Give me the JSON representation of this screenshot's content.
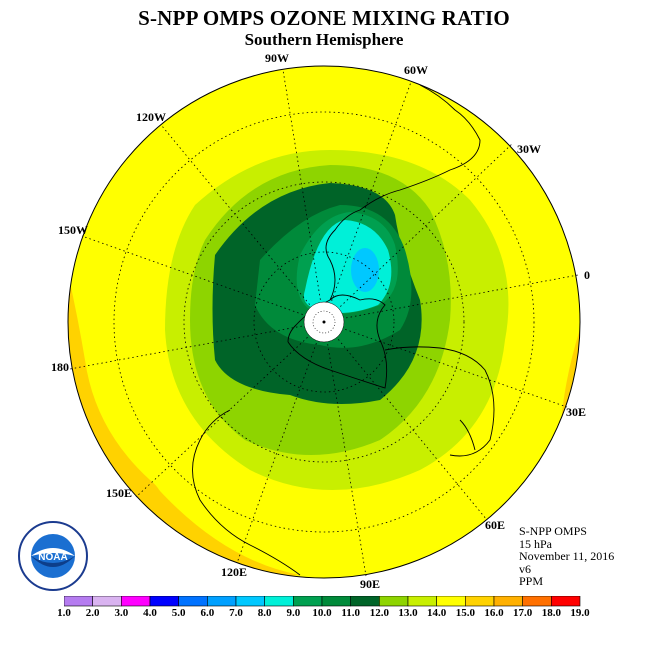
{
  "title": "S-NPP OMPS OZONE MIXING RATIO",
  "subtitle": "Southern Hemisphere",
  "longitude_labels": [
    "90W",
    "60W",
    "30W",
    "0",
    "30E",
    "60E",
    "90E",
    "120E",
    "150E",
    "180",
    "150W",
    "120W"
  ],
  "info": {
    "instrument": "S-NPP OMPS",
    "level": "15 hPa",
    "date": "November 11, 2016",
    "version": "v6",
    "units": "PPM"
  },
  "logo": {
    "text": "NOAA",
    "ring_text": "NATIONAL OCEANIC AND ATMOSPHERIC ADMINISTRATION · U.S. DEPARTMENT OF COMMERCE"
  },
  "colorbar": {
    "ticks": [
      "1.0",
      "2.0",
      "3.0",
      "4.0",
      "5.0",
      "6.0",
      "7.0",
      "8.0",
      "9.0",
      "10.0",
      "11.0",
      "12.0",
      "13.0",
      "14.0",
      "15.0",
      "16.0",
      "17.0",
      "18.0",
      "19.0"
    ],
    "colors": [
      "#b57cf0",
      "#d9b3f0",
      "#ff00ff",
      "#0000ff",
      "#0072ff",
      "#00a0ff",
      "#00c8ff",
      "#00f0d8",
      "#00a050",
      "#008a3a",
      "#006428",
      "#8ed400",
      "#c8ef00",
      "#ffff00",
      "#ffd200",
      "#ffb000",
      "#ff7000",
      "#ff0000",
      "#c00000",
      "#8b5a2b"
    ]
  },
  "map": {
    "projection": "south-polar-stereographic",
    "fill_levels_ppm": [
      8.0,
      9.0,
      10.0,
      11.0,
      12.0,
      13.0,
      14.0,
      15.0
    ]
  }
}
